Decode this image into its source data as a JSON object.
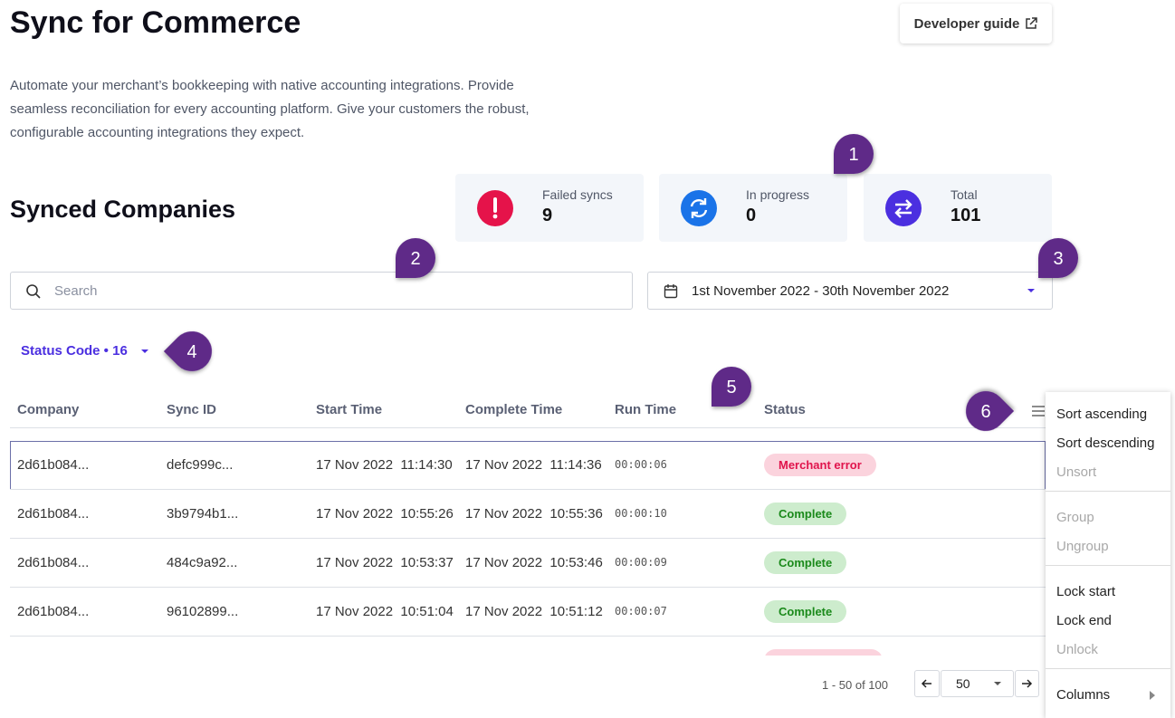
{
  "header": {
    "title": "Sync for Commerce",
    "developer_guide": "Developer guide",
    "description": "Automate your merchant’s bookkeeping with native accounting integrations. Provide seamless reconciliation for every accounting platform. Give your customers the robust, configurable accounting integrations they expect."
  },
  "section_title": "Synced Companies",
  "stats": [
    {
      "label": "Failed syncs",
      "value": 9,
      "color": "#e5134a"
    },
    {
      "label": "In progress",
      "value": 0,
      "color": "#1a73e8"
    },
    {
      "label": "Total",
      "value": 101,
      "color": "#4b2fe0"
    }
  ],
  "search_placeholder": "Search",
  "date_range": "1st November 2022 - 30th November 2022",
  "filter": "Status Code • 16",
  "table": {
    "columns": [
      "Company",
      "Sync ID",
      "Start Time",
      "Complete Time",
      "Run Time",
      "Status"
    ],
    "rows": [
      {
        "cells": [
          "2d61b084...",
          "defc999c...",
          "17 Nov 2022  11:14:30",
          "17 Nov 2022  11:14:36",
          "00:00:06"
        ],
        "status": {
          "label": "Merchant error",
          "color": "#e0144c",
          "background": "#fbd3dd"
        }
      },
      {
        "cells": [
          "2d61b084...",
          "3b9794b1...",
          "17 Nov 2022  10:55:26",
          "17 Nov 2022  10:55:36",
          "00:00:10"
        ],
        "status": {
          "label": "Complete",
          "color": "#1b8a1b",
          "background": "#cdeccd"
        }
      },
      {
        "cells": [
          "2d61b084...",
          "484c9a92...",
          "17 Nov 2022  10:53:37",
          "17 Nov 2022  10:53:46",
          "00:00:09"
        ],
        "status": {
          "label": "Complete",
          "color": "#1b8a1b",
          "background": "#cdeccd"
        }
      },
      {
        "cells": [
          "2d61b084...",
          "96102899...",
          "17 Nov 2022  10:51:04",
          "17 Nov 2022  10:51:12",
          "00:00:07"
        ],
        "status": {
          "label": "Complete",
          "color": "#1b8a1b",
          "background": "#cdeccd"
        }
      }
    ]
  },
  "pagination": {
    "range": "1 - 50 of 100",
    "page_size": 50
  },
  "menu": [
    [
      {
        "label": "Sort ascending",
        "enabled": true
      },
      {
        "label": "Sort descending",
        "enabled": true
      },
      {
        "label": "Unsort",
        "enabled": false
      }
    ],
    [
      {
        "label": "Group",
        "enabled": false
      },
      {
        "label": "Ungroup",
        "enabled": false
      }
    ],
    [
      {
        "label": "Lock start",
        "enabled": true
      },
      {
        "label": "Lock end",
        "enabled": true
      },
      {
        "label": "Unlock",
        "enabled": false
      }
    ],
    [
      {
        "label": "Columns",
        "enabled": true,
        "submenu": true
      }
    ]
  ],
  "callouts": [
    1,
    2,
    3,
    4,
    5,
    6
  ]
}
